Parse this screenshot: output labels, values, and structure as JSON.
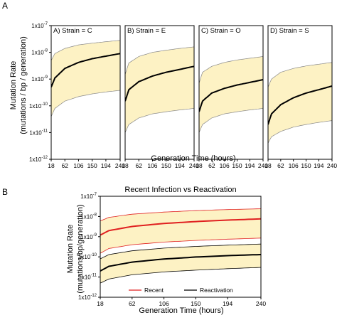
{
  "panel_labels": {
    "a": "A",
    "b": "B"
  },
  "colors": {
    "band": "#fdf2c4",
    "band_edge": "#888888",
    "black": "#000000",
    "red": "#e02020"
  },
  "chart_data": [
    {
      "id": "A1",
      "type": "line",
      "title": "A) Strain = C",
      "x": [
        18,
        30,
        62,
        106,
        150,
        194,
        240
      ],
      "y_mid": [
        5e-10,
        1.1e-09,
        2.5e-09,
        4.2e-09,
        5.8e-09,
        7.2e-09,
        9e-09
      ],
      "y_upper": [
        5e-09,
        9e-09,
        1.4e-08,
        1.9e-08,
        2.2e-08,
        2.5e-08,
        2.8e-08
      ],
      "y_lower": [
        4e-11,
        8e-11,
        1.5e-10,
        2.2e-10,
        2.8e-10,
        3.3e-10,
        3.8e-10
      ],
      "xlim": [
        18,
        240
      ],
      "ylim_exp": [
        -12,
        -7
      ],
      "log_y": true
    },
    {
      "id": "A2",
      "type": "line",
      "title": "B) Strain = E",
      "x": [
        18,
        30,
        62,
        106,
        150,
        194,
        240
      ],
      "y_mid": [
        1.5e-10,
        4e-10,
        8e-10,
        1.3e-09,
        1.8e-09,
        2.3e-09,
        3e-09
      ],
      "y_upper": [
        1.5e-09,
        4e-09,
        7e-09,
        1e-08,
        1.2e-08,
        1.4e-08,
        1.6e-08
      ],
      "y_lower": [
        1e-11,
        2e-11,
        3.5e-11,
        5e-11,
        6e-11,
        7e-11,
        8e-11
      ],
      "xlim": [
        18,
        240
      ],
      "ylim_exp": [
        -12,
        -7
      ],
      "log_y": true
    },
    {
      "id": "A3",
      "type": "line",
      "title": "C) Strain = O",
      "x": [
        18,
        30,
        62,
        106,
        150,
        194,
        240
      ],
      "y_mid": [
        6e-11,
        1.5e-10,
        3e-10,
        4.5e-10,
        6e-10,
        7.5e-10,
        9.5e-10
      ],
      "y_upper": [
        7e-10,
        1.8e-09,
        3e-09,
        4.2e-09,
        5.2e-09,
        6e-09,
        7e-09
      ],
      "y_lower": [
        1e-11,
        2e-11,
        3.5e-11,
        5e-11,
        6e-11,
        7e-11,
        8e-11
      ],
      "xlim": [
        18,
        240
      ],
      "ylim_exp": [
        -12,
        -7
      ],
      "log_y": true
    },
    {
      "id": "A4",
      "type": "line",
      "title": "D) Strain = S",
      "x": [
        18,
        30,
        62,
        106,
        150,
        194,
        240
      ],
      "y_mid": [
        2e-11,
        5e-11,
        1.1e-10,
        2e-10,
        3e-10,
        4e-10,
        5.5e-10
      ],
      "y_upper": [
        5e-10,
        1e-09,
        1.8e-09,
        2.5e-09,
        3.1e-09,
        3.6e-09,
        4.2e-09
      ],
      "y_lower": [
        4e-12,
        7e-12,
        1.1e-11,
        1.6e-11,
        2e-11,
        2.4e-11,
        2.8e-11
      ],
      "xlim": [
        18,
        240
      ],
      "ylim_exp": [
        -12,
        -7
      ],
      "log_y": true
    },
    {
      "id": "B",
      "type": "line",
      "title": "Recent Infection vs Reactivation",
      "x": [
        18,
        30,
        62,
        106,
        150,
        194,
        240
      ],
      "series": [
        {
          "name": "Recent",
          "color": "#e02020",
          "y_mid": [
            1.2e-09,
            2e-09,
            3.2e-09,
            4.5e-09,
            5.6e-09,
            6.6e-09,
            7.6e-09
          ],
          "y_upper": [
            6e-09,
            9e-09,
            1.3e-08,
            1.65e-08,
            1.95e-08,
            2.2e-08,
            2.4e-08
          ],
          "y_lower": [
            1.5e-10,
            2.6e-10,
            4e-10,
            5.4e-10,
            6.5e-10,
            7.5e-10,
            8.5e-10
          ]
        },
        {
          "name": "Reactivation",
          "color": "#000000",
          "y_mid": [
            2e-11,
            3.4e-11,
            5.5e-11,
            7.8e-11,
            9.8e-11,
            1.15e-10,
            1.3e-10
          ],
          "y_upper": [
            8e-11,
            1.3e-10,
            2e-10,
            2.7e-10,
            3.3e-10,
            3.8e-10,
            4.3e-10
          ],
          "y_lower": [
            5e-12,
            8e-12,
            1.3e-11,
            1.8e-11,
            2.2e-11,
            2.6e-11,
            3e-11
          ]
        }
      ],
      "xlim": [
        18,
        240
      ],
      "ylim_exp": [
        -12,
        -7
      ],
      "log_y": true
    }
  ],
  "axes": {
    "a_ylabel_1": "Mutation Rate",
    "a_ylabel_2": "(mutations / bp / generation)",
    "a_xlabel": "Generation Time (hours)",
    "b_ylabel_1": "Mutation Rate",
    "b_ylabel_2": "(mutations/bp/generation)",
    "b_xlabel": "Generation Time (hours)",
    "x_ticks": [
      "18",
      "62",
      "106",
      "150",
      "194",
      "240"
    ],
    "y_tick_base": "1x10",
    "y_tick_exps": [
      "-7",
      "-8",
      "-9",
      "-10",
      "-11",
      "-12"
    ]
  },
  "legend": {
    "recent": "Recent",
    "reactivation": "Reactivation"
  }
}
